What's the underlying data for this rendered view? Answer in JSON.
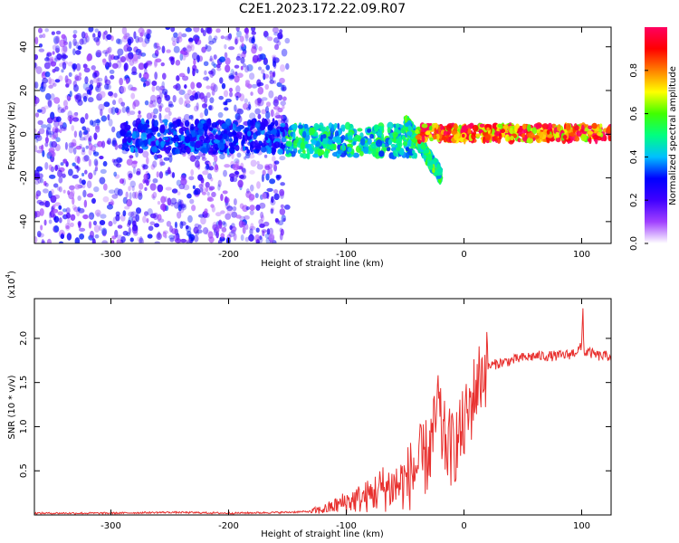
{
  "title": "C2E1.2023.172.22.09.R07",
  "colors": {
    "snr_line": "#e8302e",
    "spectrogram_scatter": "#7a00ff",
    "frame": "#000000"
  },
  "chart_data": [
    {
      "type": "heatmap",
      "xlabel": "Height of straight line (km)",
      "ylabel": "Frequency (Hz)",
      "xlim": [
        -365,
        125
      ],
      "ylim": [
        -50,
        49
      ],
      "xticks": [
        -300,
        -200,
        -100,
        0,
        100
      ],
      "xtick_labels": [
        "-300",
        "-200",
        "-100",
        "0",
        "100"
      ],
      "yticks": [
        -40,
        -20,
        0,
        20,
        40
      ],
      "ytick_labels": [
        "-40",
        "-20",
        "0",
        "20",
        "40"
      ],
      "colorbar": {
        "label": "Normalized spectral amplitude",
        "range": [
          0,
          1
        ],
        "ticks": [
          0.0,
          0.2,
          0.4,
          0.6,
          0.8
        ],
        "tick_labels": [
          "0.0",
          "0.2",
          "0.4",
          "0.6",
          "0.8"
        ],
        "colormap": [
          "#ffffff",
          "#a040ff",
          "#4000ff",
          "#0000ff",
          "#00c0ff",
          "#00ff80",
          "#40ff00",
          "#ffff00",
          "#ff8000",
          "#ff0000",
          "#ff0060"
        ]
      },
      "regions": [
        {
          "x": [
            -365,
            -150
          ],
          "f": [
            -50,
            49
          ],
          "level": 0.15,
          "pattern": "broadband noise"
        },
        {
          "x": [
            -290,
            -150
          ],
          "f": [
            -8,
            6
          ],
          "level": 0.3,
          "pattern": "band"
        },
        {
          "x": [
            -150,
            -40
          ],
          "f": [
            -10,
            4
          ],
          "level": 0.45,
          "pattern": "band"
        },
        {
          "x": [
            -50,
            -20
          ],
          "f": [
            -22,
            10
          ],
          "level": 0.5,
          "pattern": "diagonal streak"
        },
        {
          "x": [
            -40,
            125
          ],
          "f": [
            -3,
            4
          ],
          "level": 0.85,
          "pattern": "narrow band"
        }
      ]
    },
    {
      "type": "line",
      "xlabel": "Height of straight line (km)",
      "ylabel": "SNR (10 * v/v)",
      "y_multiplier": "(x10",
      "y_multiplier_exp": "4",
      "y_multiplier_close": ")",
      "xlim": [
        -365,
        125
      ],
      "ylim": [
        0,
        2.45
      ],
      "xticks": [
        -300,
        -200,
        -100,
        0,
        100
      ],
      "xtick_labels": [
        "-300",
        "-200",
        "-100",
        "0",
        "100"
      ],
      "yticks": [
        0.5,
        1.0,
        1.5,
        2.0
      ],
      "ytick_labels": [
        "0.5",
        "1.0",
        "1.5",
        "2.0"
      ],
      "series": [
        {
          "x": [
            -365,
            -300,
            -250,
            -200,
            -150,
            -130,
            -120,
            -110,
            -100,
            -90,
            -80,
            -70,
            -60,
            -50,
            -40,
            -35,
            -30,
            -25,
            -22,
            -20,
            -18,
            -15,
            -10,
            -5,
            0,
            5,
            10,
            15,
            20,
            30,
            40,
            50,
            60,
            70,
            80,
            90,
            95,
            100,
            101,
            102,
            105,
            110,
            115,
            120,
            125
          ],
          "y": [
            0.02,
            0.02,
            0.03,
            0.02,
            0.03,
            0.04,
            0.06,
            0.1,
            0.15,
            0.18,
            0.22,
            0.3,
            0.32,
            0.38,
            0.55,
            0.6,
            0.7,
            0.95,
            1.3,
            1.0,
            0.9,
            0.8,
            0.75,
            0.85,
            1.0,
            1.2,
            1.45,
            1.6,
            1.68,
            1.72,
            1.75,
            1.78,
            1.8,
            1.8,
            1.8,
            1.82,
            1.85,
            1.9,
            2.35,
            1.82,
            1.85,
            1.82,
            1.8,
            1.8,
            1.8
          ]
        }
      ]
    }
  ]
}
